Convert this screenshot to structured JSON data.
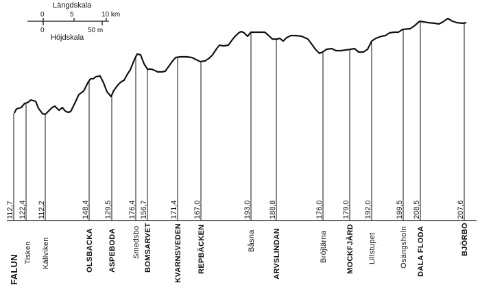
{
  "scale": {
    "length_title": "Längdskala",
    "height_title": "Höjdskala",
    "length_ticks": [
      "0",
      "5",
      "10 km"
    ],
    "height_ticks": [
      "0",
      "50 m"
    ]
  },
  "stations": [
    {
      "name": "FALUN",
      "elevation": "112,7",
      "style": "caps"
    },
    {
      "name": "Tisken",
      "elevation": "122,4",
      "style": "small"
    },
    {
      "name": "Källviken",
      "elevation": "112,2",
      "style": "small"
    },
    {
      "name": "OLSBACKA",
      "elevation": "148,4",
      "style": "caps"
    },
    {
      "name": "ASPEBODA",
      "elevation": "129,5",
      "style": "caps"
    },
    {
      "name": "Smedsbo",
      "elevation": "176,4",
      "style": "small"
    },
    {
      "name": "BOMSARVET",
      "elevation": "156,7",
      "style": "caps"
    },
    {
      "name": "KVARNSVEDEN",
      "elevation": "171,4",
      "style": "caps"
    },
    {
      "name": "REPBÄCKEN",
      "elevation": "167,0",
      "style": "caps"
    },
    {
      "name": "Båsna",
      "elevation": "193,0",
      "style": "small"
    },
    {
      "name": "ARVSLINDAN",
      "elevation": "188,8",
      "style": "caps"
    },
    {
      "name": "Bröjtärna",
      "elevation": "176,0",
      "style": "small"
    },
    {
      "name": "MOCKFJÄRD",
      "elevation": "179,0",
      "style": "caps"
    },
    {
      "name": "Lillstupet",
      "elevation": "192,0",
      "style": "small"
    },
    {
      "name": "Osängsholn",
      "elevation": "199,5",
      "style": "small"
    },
    {
      "name": "DALA FLODA",
      "elevation": "208,5",
      "style": "caps"
    },
    {
      "name": "BJÖRBO",
      "elevation": "207,6",
      "style": "caps"
    }
  ]
}
